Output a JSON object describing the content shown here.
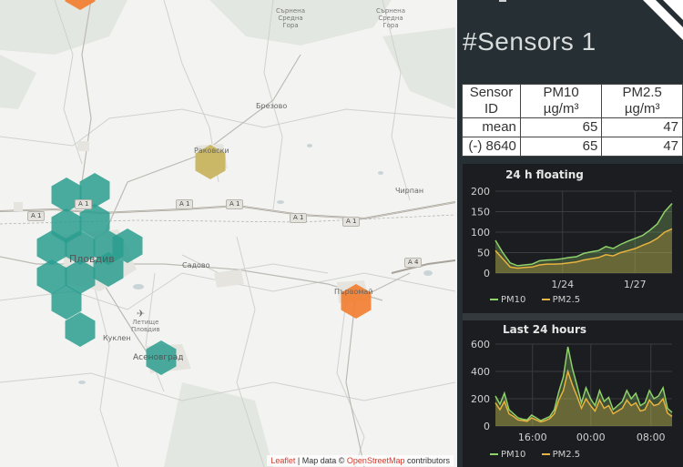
{
  "map": {
    "places": [
      {
        "name": "Сърнена\nСредна\nГора",
        "cls": "tiny"
      },
      {
        "name": "Сърнена\nСредна\nГора",
        "cls": "tiny"
      },
      {
        "name": "Брезово",
        "cls": "place"
      },
      {
        "name": "Раковски",
        "cls": "place"
      },
      {
        "name": "Пловдив",
        "cls": "city"
      },
      {
        "name": "Садово",
        "cls": "place"
      },
      {
        "name": "Първомай",
        "cls": "place"
      },
      {
        "name": "Чирпан",
        "cls": "place"
      },
      {
        "name": "Летище\nПловдив",
        "cls": "tiny"
      },
      {
        "name": "Куклен",
        "cls": "place"
      },
      {
        "name": "Асеновград",
        "cls": "mid"
      }
    ],
    "road_shields": [
      "A 1",
      "A 1",
      "A 1",
      "A 1",
      "A 1",
      "A 1",
      "A 4"
    ],
    "colors": {
      "teal": "#2a9d8f",
      "olive": "#c7b25a",
      "orange": "#f27c2e"
    },
    "attribution": {
      "leaflet": "Leaflet",
      "sep": " | Map data © ",
      "osm": "OpenStreetMap",
      "tail": " contributors"
    }
  },
  "sidebar": {
    "title": "#Sensors 1",
    "table": {
      "headers": [
        {
          "l1": "Sensor",
          "l2": "ID"
        },
        {
          "l1": "PM10",
          "l2": "µg/m³"
        },
        {
          "l1": "PM2.5",
          "l2": "µg/m³"
        }
      ],
      "rows": [
        [
          "mean",
          "65",
          "47"
        ],
        [
          "(-) 8640",
          "65",
          "47"
        ]
      ]
    }
  },
  "chart_data": [
    {
      "type": "area",
      "title": "24 h floating",
      "x_ticks": [
        "1/24",
        "1/27"
      ],
      "ylim": [
        0,
        200
      ],
      "y_ticks": [
        0,
        50,
        100,
        150,
        200
      ],
      "x": [
        0,
        1,
        2,
        3,
        4,
        5,
        6,
        7,
        8,
        9,
        10,
        11,
        12,
        13,
        14,
        15,
        16,
        17,
        18,
        19,
        20,
        21,
        22,
        23,
        24
      ],
      "series": [
        {
          "name": "PM10",
          "color": "#8fd16a",
          "values": [
            80,
            50,
            25,
            18,
            20,
            22,
            30,
            32,
            33,
            35,
            38,
            40,
            48,
            52,
            55,
            65,
            60,
            70,
            78,
            85,
            92,
            105,
            120,
            150,
            170
          ]
        },
        {
          "name": "PM2.5",
          "color": "#e8b33f",
          "values": [
            55,
            35,
            15,
            12,
            14,
            15,
            20,
            22,
            22,
            23,
            25,
            27,
            32,
            35,
            38,
            45,
            42,
            50,
            55,
            60,
            68,
            75,
            85,
            100,
            108
          ]
        }
      ],
      "grid": true,
      "legend": "bottom"
    },
    {
      "type": "area",
      "title": "Last 24 hours",
      "x_ticks": [
        "16:00",
        "00:00",
        "08:00"
      ],
      "ylim": [
        0,
        600
      ],
      "y_ticks": [
        0,
        200,
        400,
        600
      ],
      "x": [
        0,
        1,
        2,
        3,
        4,
        5,
        6,
        7,
        8,
        9,
        10,
        11,
        12,
        13,
        14,
        15,
        16,
        17,
        18,
        19,
        20,
        21,
        22,
        23,
        24,
        25,
        26,
        27,
        28,
        29,
        30,
        31,
        32,
        33,
        34,
        35,
        36,
        37,
        38,
        39
      ],
      "series": [
        {
          "name": "PM10",
          "color": "#8fd16a",
          "values": [
            220,
            160,
            240,
            120,
            90,
            60,
            50,
            45,
            80,
            60,
            40,
            55,
            70,
            120,
            250,
            360,
            580,
            420,
            300,
            170,
            280,
            200,
            150,
            260,
            180,
            210,
            120,
            150,
            180,
            260,
            200,
            240,
            150,
            170,
            260,
            200,
            220,
            280,
            130,
            100
          ]
        },
        {
          "name": "PM2.5",
          "color": "#e8b33f",
          "values": [
            170,
            120,
            180,
            90,
            70,
            45,
            40,
            35,
            60,
            45,
            30,
            40,
            55,
            90,
            190,
            260,
            400,
            300,
            220,
            130,
            200,
            150,
            110,
            190,
            130,
            150,
            90,
            110,
            130,
            190,
            150,
            170,
            110,
            120,
            190,
            150,
            160,
            200,
            95,
            70
          ]
        }
      ],
      "grid": true,
      "legend": "bottom"
    }
  ]
}
